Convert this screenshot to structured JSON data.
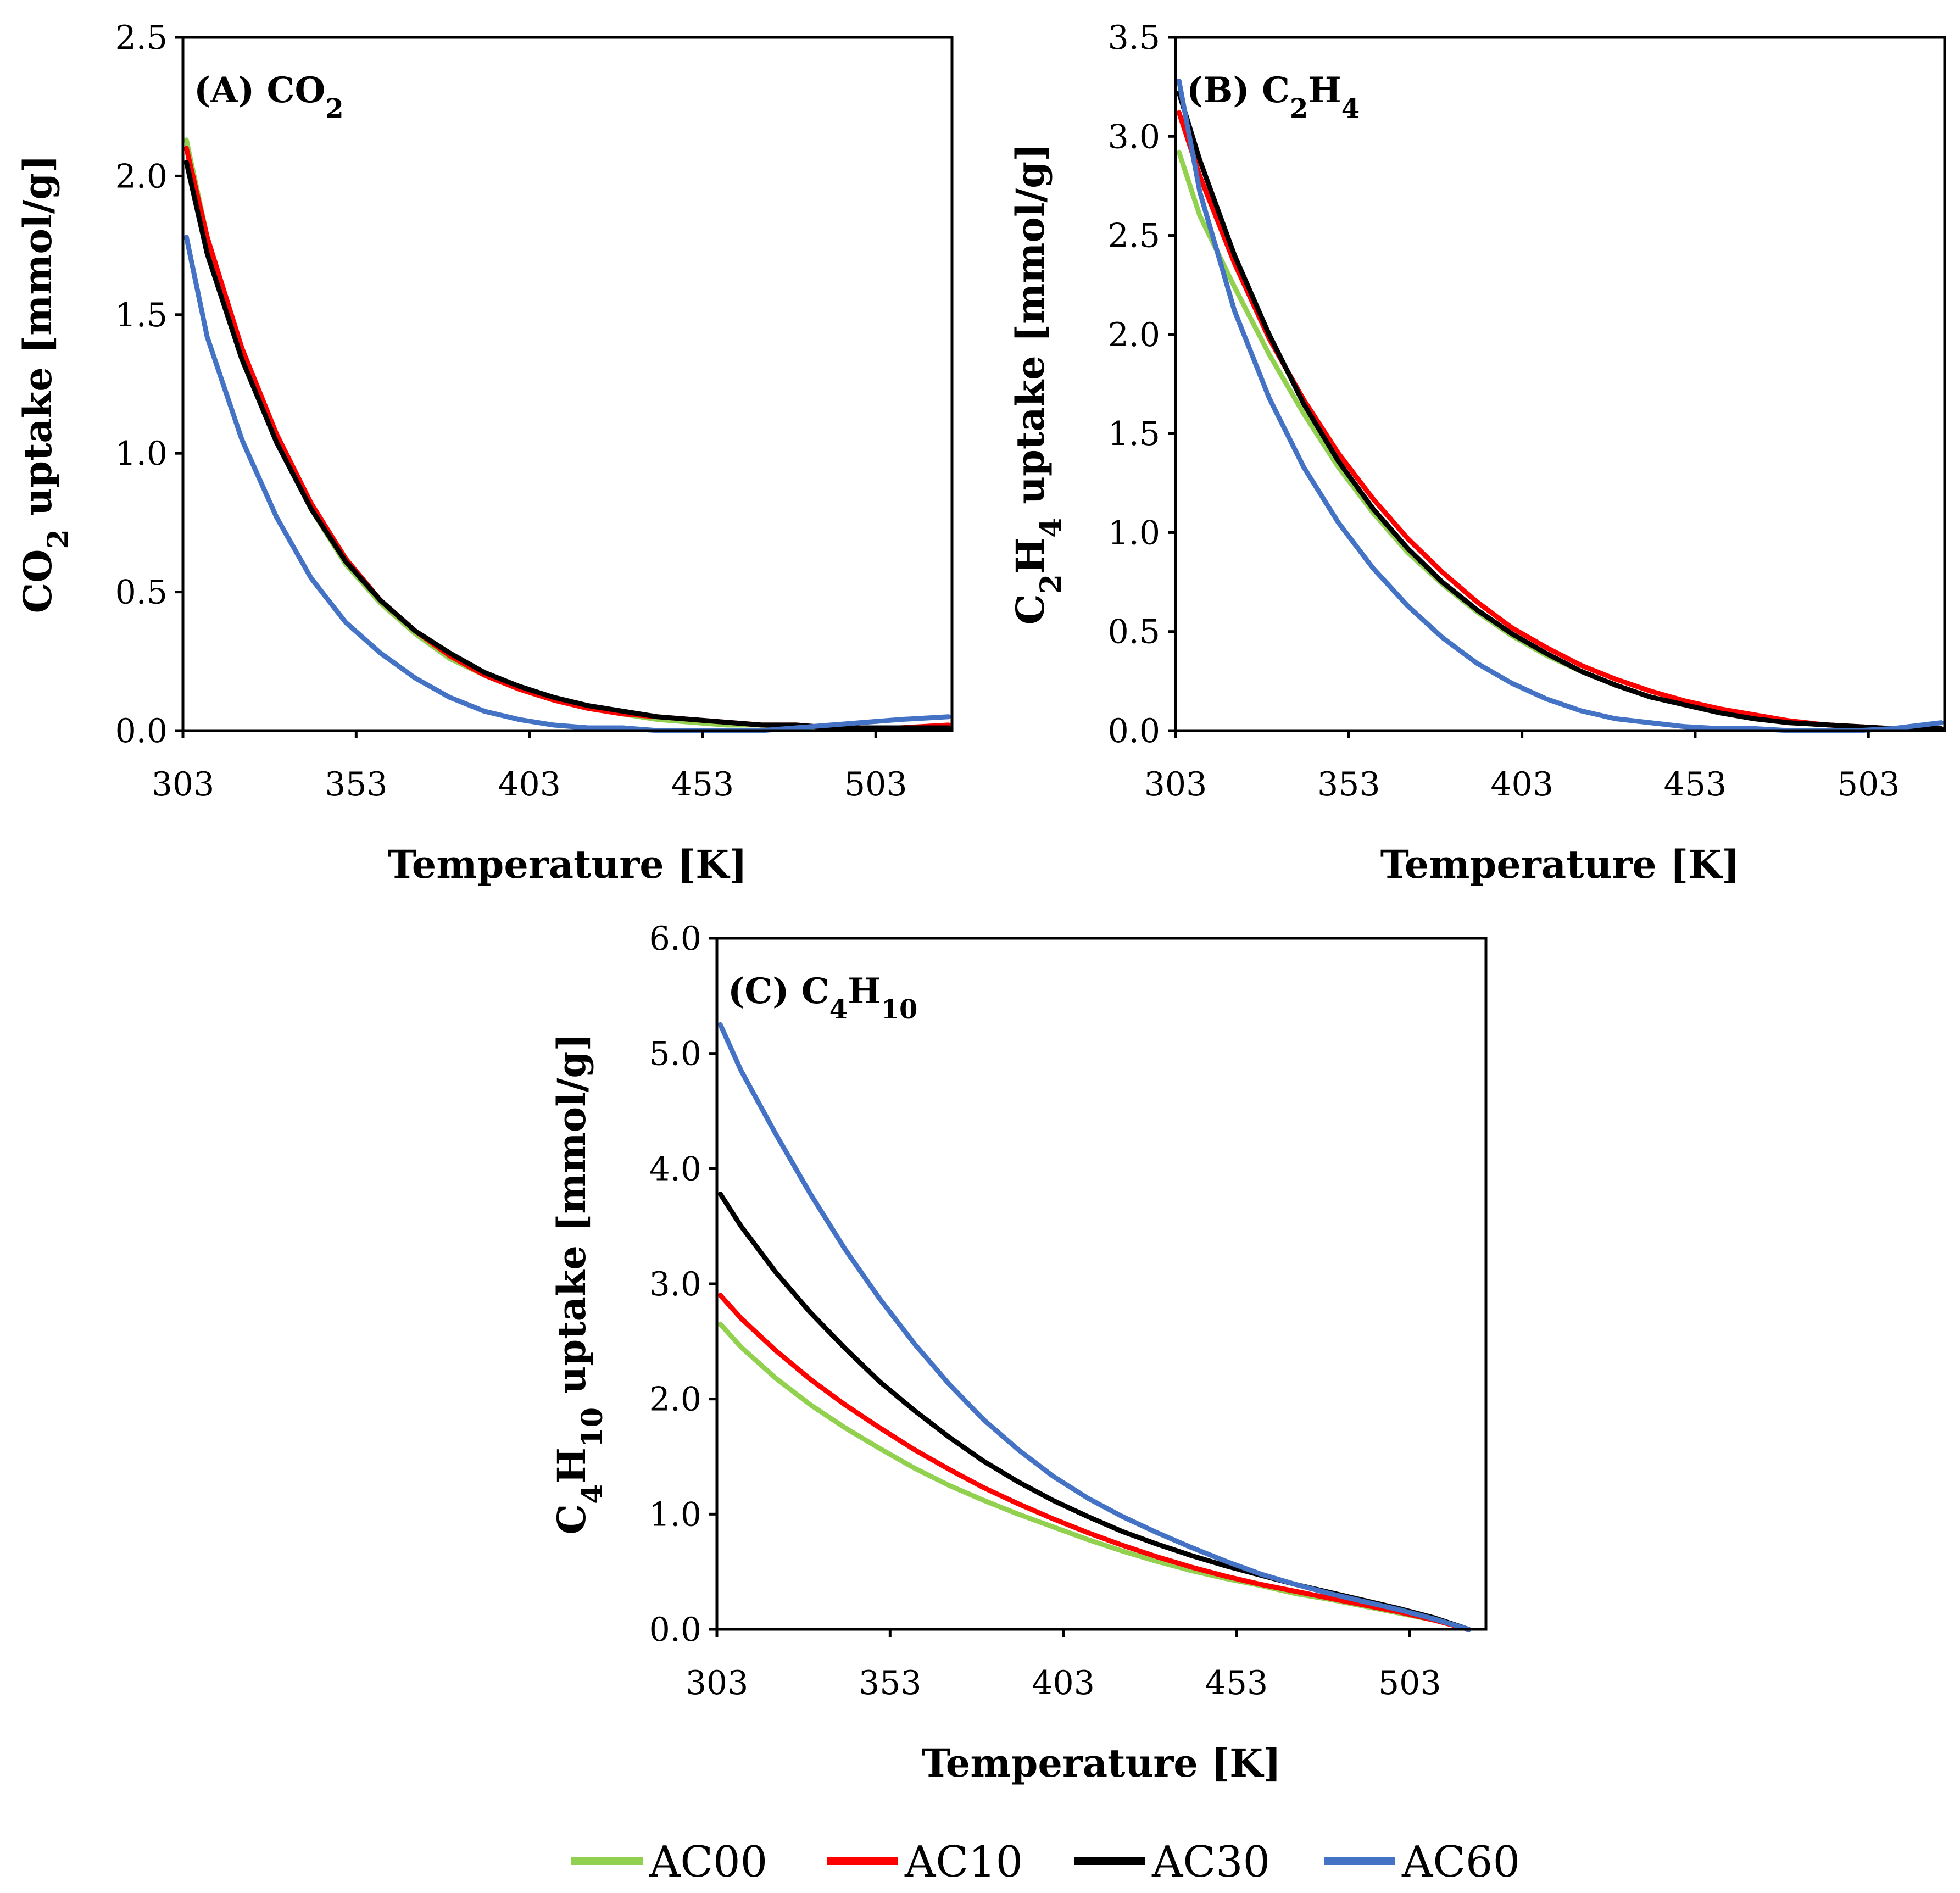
{
  "legend": [
    {
      "name": "AC00",
      "color": "#92d050"
    },
    {
      "name": "AC10",
      "color": "#ff0000"
    },
    {
      "name": "AC30",
      "color": "#000000"
    },
    {
      "name": "AC60",
      "color": "#4472c4"
    }
  ],
  "chart_data": [
    {
      "id": "A",
      "type": "line",
      "title": {
        "prefix": "(A) CO",
        "sub": "2",
        "suffix": ""
      },
      "xlabel": "Temperature [K]",
      "ylabel": {
        "prefix": "CO",
        "sub": "2",
        "suffix": " uptake [mmol/g]"
      },
      "xlim": [
        303,
        525
      ],
      "ylim": [
        0,
        2.5
      ],
      "xticks": [
        "303",
        "353",
        "403",
        "453",
        "503"
      ],
      "yticks": [
        "0.0",
        "0.5",
        "1.0",
        "1.5",
        "2.0",
        "2.5"
      ],
      "x": [
        304,
        310,
        320,
        330,
        340,
        350,
        360,
        370,
        380,
        390,
        400,
        410,
        420,
        430,
        440,
        450,
        460,
        470,
        480,
        490,
        500,
        510,
        524
      ],
      "series": [
        {
          "name": "AC00",
          "values": [
            2.13,
            1.78,
            1.36,
            1.05,
            0.8,
            0.6,
            0.46,
            0.35,
            0.26,
            0.2,
            0.15,
            0.11,
            0.08,
            0.06,
            0.04,
            0.03,
            0.02,
            0.02,
            0.01,
            0.01,
            0.01,
            0.01,
            0.01
          ]
        },
        {
          "name": "AC10",
          "values": [
            2.1,
            1.78,
            1.38,
            1.07,
            0.82,
            0.62,
            0.47,
            0.36,
            0.27,
            0.2,
            0.15,
            0.11,
            0.08,
            0.06,
            0.05,
            0.04,
            0.03,
            0.02,
            0.02,
            0.01,
            0.01,
            0.01,
            0.02
          ]
        },
        {
          "name": "AC30",
          "values": [
            2.05,
            1.72,
            1.34,
            1.04,
            0.8,
            0.61,
            0.47,
            0.36,
            0.28,
            0.21,
            0.16,
            0.12,
            0.09,
            0.07,
            0.05,
            0.04,
            0.03,
            0.02,
            0.02,
            0.01,
            0.01,
            0.01,
            0.01
          ]
        },
        {
          "name": "AC60",
          "values": [
            1.78,
            1.42,
            1.05,
            0.77,
            0.55,
            0.39,
            0.28,
            0.19,
            0.12,
            0.07,
            0.04,
            0.02,
            0.01,
            0.01,
            0.0,
            0.0,
            0.0,
            0.0,
            0.01,
            0.02,
            0.03,
            0.04,
            0.05
          ]
        }
      ]
    },
    {
      "id": "B",
      "type": "line",
      "title": {
        "prefix": "(B) C",
        "sub": "2",
        "suffix": "H",
        "sub2": "4"
      },
      "xlabel": "Temperature [K]",
      "ylabel": {
        "prefix": "C",
        "sub": "2",
        "suffix": "H",
        "sub2": "4",
        "suffix2": " uptake [mmol/g]"
      },
      "xlim": [
        303,
        525
      ],
      "ylim": [
        0,
        3.5
      ],
      "xticks": [
        "303",
        "353",
        "403",
        "453",
        "503"
      ],
      "yticks": [
        "0.0",
        "0.5",
        "1.0",
        "1.5",
        "2.0",
        "2.5",
        "3.0",
        "3.5"
      ],
      "x": [
        304,
        310,
        320,
        330,
        340,
        350,
        360,
        370,
        380,
        390,
        400,
        410,
        420,
        430,
        440,
        450,
        460,
        470,
        480,
        490,
        500,
        510,
        524
      ],
      "series": [
        {
          "name": "AC00",
          "values": [
            2.92,
            2.6,
            2.24,
            1.9,
            1.6,
            1.33,
            1.1,
            0.9,
            0.74,
            0.6,
            0.48,
            0.38,
            0.3,
            0.23,
            0.17,
            0.13,
            0.09,
            0.06,
            0.04,
            0.03,
            0.02,
            0.01,
            0.01
          ]
        },
        {
          "name": "AC10",
          "values": [
            3.12,
            2.8,
            2.36,
            1.98,
            1.67,
            1.4,
            1.17,
            0.97,
            0.8,
            0.65,
            0.52,
            0.42,
            0.33,
            0.26,
            0.2,
            0.15,
            0.11,
            0.08,
            0.05,
            0.03,
            0.02,
            0.01,
            0.01
          ]
        },
        {
          "name": "AC30",
          "values": [
            3.22,
            2.88,
            2.4,
            2.0,
            1.65,
            1.36,
            1.12,
            0.92,
            0.75,
            0.61,
            0.49,
            0.39,
            0.3,
            0.23,
            0.17,
            0.13,
            0.09,
            0.06,
            0.04,
            0.03,
            0.02,
            0.01,
            0.01
          ]
        },
        {
          "name": "AC60",
          "values": [
            3.28,
            2.72,
            2.12,
            1.68,
            1.33,
            1.05,
            0.82,
            0.63,
            0.47,
            0.34,
            0.24,
            0.16,
            0.1,
            0.06,
            0.04,
            0.02,
            0.01,
            0.01,
            0.0,
            0.0,
            0.0,
            0.01,
            0.04
          ]
        }
      ]
    },
    {
      "id": "C",
      "type": "line",
      "title": {
        "prefix": "(C) C",
        "sub": "4",
        "suffix": "H",
        "sub2": "10"
      },
      "xlabel": "Temperature [K]",
      "ylabel": {
        "prefix": "C",
        "sub": "4",
        "suffix": "H",
        "sub2": "10",
        "suffix2": " uptake [mmol/g]"
      },
      "xlim": [
        303,
        525
      ],
      "ylim": [
        0,
        6.0
      ],
      "xticks": [
        "303",
        "353",
        "403",
        "453",
        "503"
      ],
      "yticks": [
        "0.0",
        "1.0",
        "2.0",
        "3.0",
        "4.0",
        "5.0",
        "6.0"
      ],
      "x": [
        304,
        310,
        320,
        330,
        340,
        350,
        360,
        370,
        380,
        390,
        400,
        410,
        420,
        430,
        440,
        450,
        460,
        470,
        480,
        490,
        500,
        510,
        520
      ],
      "series": [
        {
          "name": "AC00",
          "values": [
            2.65,
            2.45,
            2.18,
            1.95,
            1.75,
            1.57,
            1.4,
            1.25,
            1.12,
            1.0,
            0.89,
            0.78,
            0.68,
            0.59,
            0.51,
            0.44,
            0.38,
            0.31,
            0.26,
            0.2,
            0.14,
            0.08,
            0.0
          ]
        },
        {
          "name": "AC10",
          "values": [
            2.9,
            2.7,
            2.42,
            2.17,
            1.95,
            1.75,
            1.56,
            1.39,
            1.23,
            1.09,
            0.96,
            0.84,
            0.73,
            0.63,
            0.54,
            0.46,
            0.39,
            0.33,
            0.27,
            0.21,
            0.15,
            0.08,
            0.0
          ]
        },
        {
          "name": "AC30",
          "values": [
            3.78,
            3.5,
            3.1,
            2.75,
            2.44,
            2.15,
            1.9,
            1.67,
            1.46,
            1.28,
            1.12,
            0.98,
            0.85,
            0.74,
            0.64,
            0.55,
            0.47,
            0.39,
            0.32,
            0.25,
            0.18,
            0.1,
            0.0
          ]
        },
        {
          "name": "AC60",
          "values": [
            5.25,
            4.85,
            4.3,
            3.78,
            3.3,
            2.87,
            2.48,
            2.13,
            1.82,
            1.56,
            1.33,
            1.14,
            0.98,
            0.84,
            0.71,
            0.59,
            0.48,
            0.39,
            0.31,
            0.24,
            0.17,
            0.09,
            0.0
          ]
        }
      ]
    }
  ]
}
